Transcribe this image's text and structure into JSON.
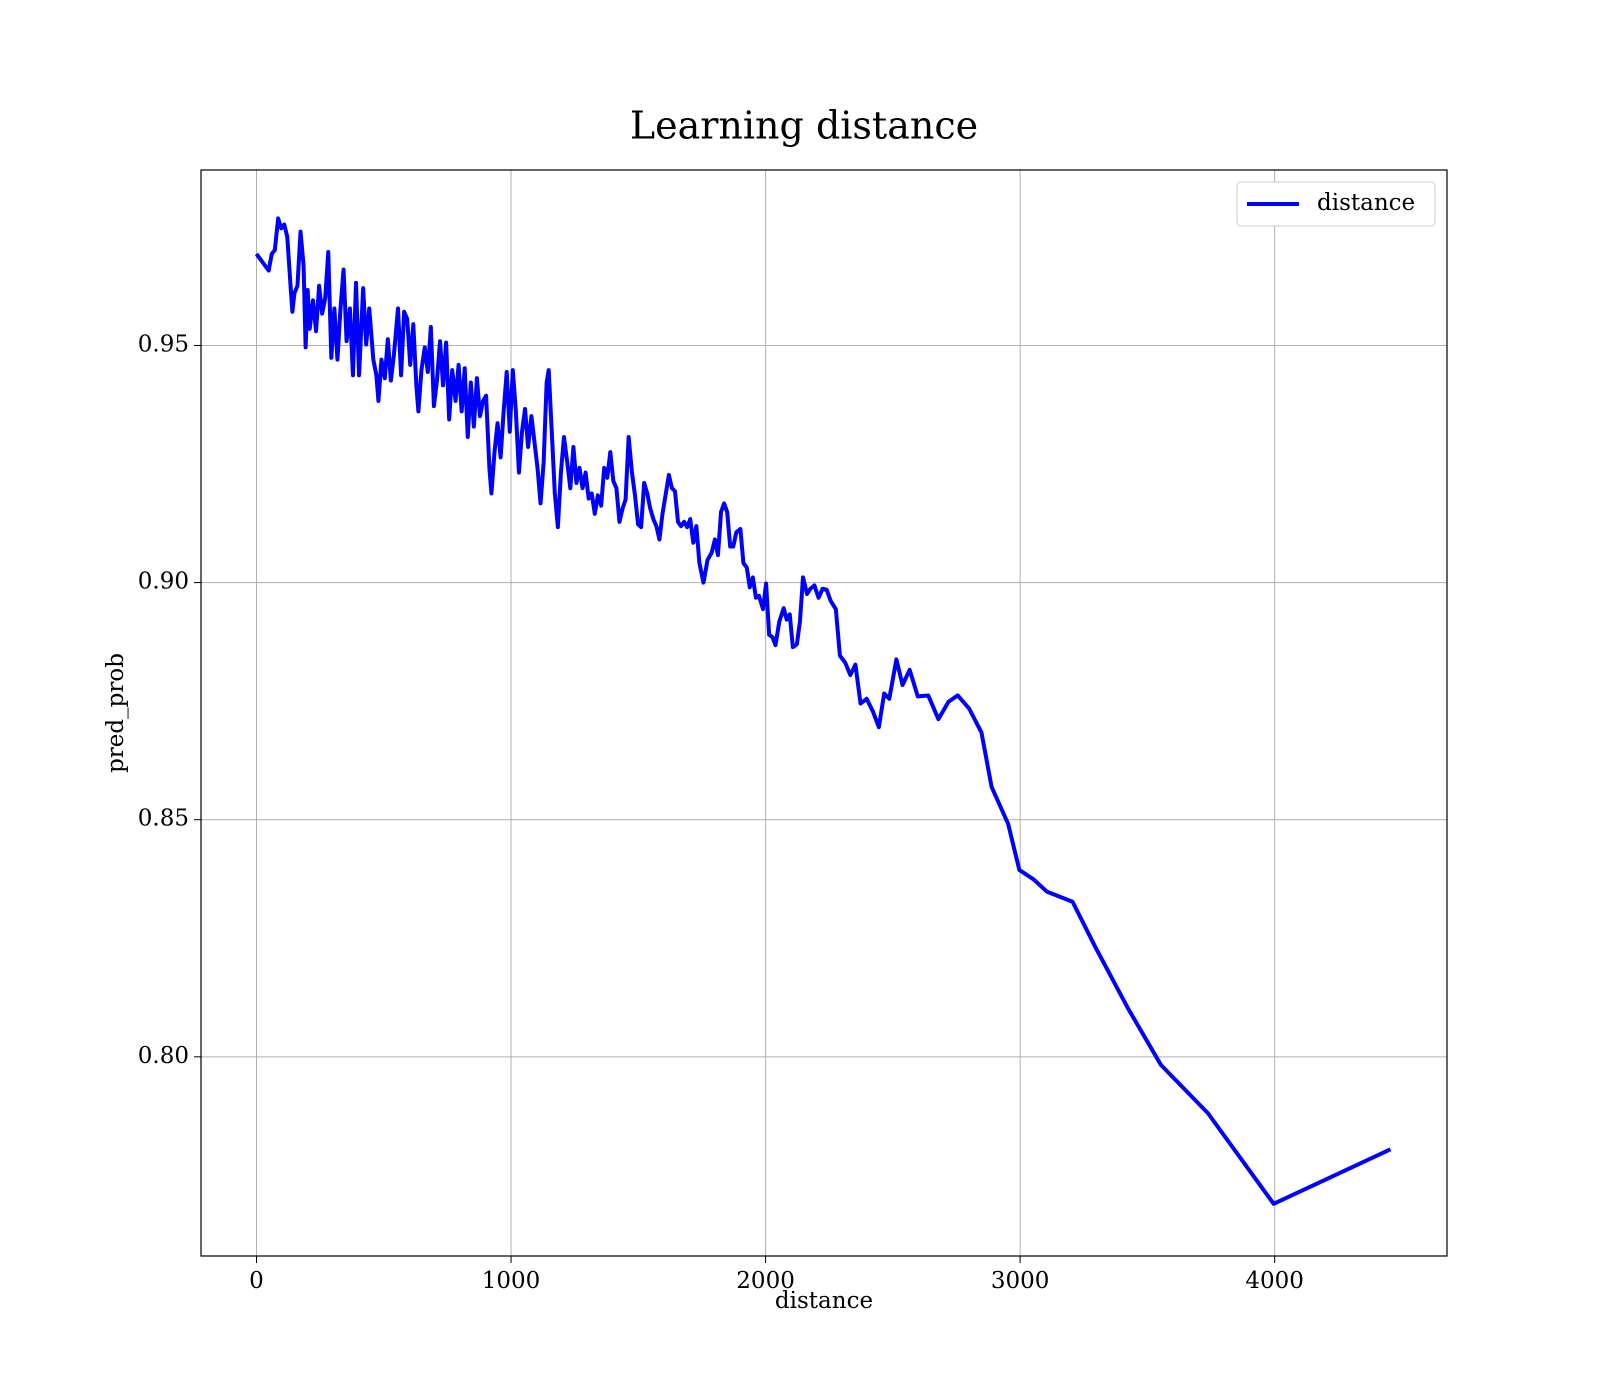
{
  "chart_data": {
    "type": "line",
    "title": "Learning distance",
    "x_label": "distance",
    "y_label": "pred_prob",
    "x": [
      0,
      48,
      60,
      72,
      85,
      97,
      109,
      121,
      133,
      141,
      149,
      161,
      173,
      185,
      193,
      201,
      209,
      222,
      234,
      246,
      258,
      270,
      282,
      294,
      306,
      318,
      330,
      342,
      354,
      367,
      379,
      391,
      403,
      419,
      431,
      443,
      459,
      471,
      479,
      491,
      504,
      516,
      528,
      540,
      556,
      568,
      580,
      592,
      604,
      616,
      628,
      636,
      648,
      661,
      673,
      685,
      697,
      709,
      721,
      733,
      745,
      757,
      769,
      782,
      794,
      806,
      818,
      830,
      842,
      854,
      866,
      878,
      890,
      902,
      915,
      923,
      935,
      947,
      959,
      971,
      983,
      995,
      1007,
      1019,
      1031,
      1043,
      1055,
      1067,
      1080,
      1092,
      1104,
      1116,
      1128,
      1140,
      1148,
      1160,
      1172,
      1184,
      1196,
      1208,
      1221,
      1233,
      1245,
      1257,
      1269,
      1281,
      1293,
      1305,
      1317,
      1329,
      1341,
      1354,
      1366,
      1378,
      1390,
      1402,
      1414,
      1426,
      1438,
      1450,
      1462,
      1475,
      1487,
      1499,
      1511,
      1523,
      1535,
      1547,
      1559,
      1571,
      1583,
      1595,
      1607,
      1620,
      1632,
      1644,
      1656,
      1668,
      1680,
      1692,
      1704,
      1716,
      1728,
      1740,
      1756,
      1772,
      1788,
      1801,
      1813,
      1825,
      1837,
      1849,
      1861,
      1873,
      1885,
      1901,
      1913,
      1926,
      1938,
      1950,
      1962,
      1974,
      1990,
      2002,
      2014,
      2027,
      2039,
      2054,
      2071,
      2083,
      2095,
      2107,
      2123,
      2135,
      2147,
      2163,
      2176,
      2192,
      2208,
      2224,
      2240,
      2256,
      2276,
      2292,
      2313,
      2333,
      2353,
      2373,
      2397,
      2421,
      2445,
      2466,
      2486,
      2514,
      2538,
      2566,
      2598,
      2639,
      2679,
      2719,
      2755,
      2800,
      2848,
      2888,
      2953,
      2997,
      3053,
      3106,
      3206,
      3295,
      3424,
      3553,
      3738,
      3996,
      4455
    ],
    "series": [
      {
        "name": "distance",
        "color": "#0000ff",
        "values": [
          0.9693,
          0.9658,
          0.9693,
          0.9701,
          0.9768,
          0.9747,
          0.9755,
          0.9729,
          0.9632,
          0.9571,
          0.961,
          0.9626,
          0.974,
          0.9669,
          0.9496,
          0.9617,
          0.9535,
          0.9595,
          0.953,
          0.9626,
          0.9567,
          0.96,
          0.9697,
          0.9474,
          0.9578,
          0.947,
          0.9578,
          0.966,
          0.9509,
          0.9578,
          0.9437,
          0.9632,
          0.9437,
          0.9621,
          0.9502,
          0.9578,
          0.947,
          0.9437,
          0.9383,
          0.947,
          0.9431,
          0.9513,
          0.9426,
          0.9481,
          0.9578,
          0.9437,
          0.9571,
          0.9556,
          0.9459,
          0.9545,
          0.9416,
          0.9361,
          0.9448,
          0.9496,
          0.9444,
          0.9539,
          0.9372,
          0.9426,
          0.9509,
          0.9416,
          0.9506,
          0.9344,
          0.9448,
          0.9383,
          0.9459,
          0.9361,
          0.9452,
          0.9307,
          0.9422,
          0.9329,
          0.9431,
          0.9351,
          0.9383,
          0.9394,
          0.9242,
          0.9188,
          0.9275,
          0.9336,
          0.9264,
          0.9361,
          0.9444,
          0.9318,
          0.9448,
          0.9361,
          0.9232,
          0.9318,
          0.9366,
          0.9286,
          0.9351,
          0.9297,
          0.9242,
          0.9167,
          0.9253,
          0.9422,
          0.9448,
          0.9318,
          0.9188,
          0.9117,
          0.9232,
          0.9307,
          0.9253,
          0.9199,
          0.9286,
          0.921,
          0.9242,
          0.9199,
          0.9232,
          0.9177,
          0.9188,
          0.9145,
          0.9184,
          0.9162,
          0.9242,
          0.9221,
          0.9275,
          0.9214,
          0.9199,
          0.9128,
          0.9156,
          0.9175,
          0.9307,
          0.9232,
          0.9184,
          0.9123,
          0.9117,
          0.921,
          0.9188,
          0.9156,
          0.9134,
          0.9119,
          0.9091,
          0.9145,
          0.9184,
          0.9227,
          0.9199,
          0.9193,
          0.9128,
          0.9119,
          0.9128,
          0.9117,
          0.9134,
          0.9084,
          0.9119,
          0.9041,
          0.9,
          0.9048,
          0.9063,
          0.9091,
          0.9058,
          0.9149,
          0.9167,
          0.9149,
          0.9076,
          0.9076,
          0.9106,
          0.9113,
          0.9041,
          0.9032,
          0.899,
          0.9011,
          0.8968,
          0.8972,
          0.8944,
          0.8998,
          0.889,
          0.8885,
          0.8868,
          0.8918,
          0.8946,
          0.8922,
          0.8933,
          0.8864,
          0.887,
          0.8918,
          0.9011,
          0.8976,
          0.8987,
          0.8994,
          0.8968,
          0.8987,
          0.8985,
          0.8961,
          0.8944,
          0.8846,
          0.8831,
          0.8805,
          0.8827,
          0.8745,
          0.8755,
          0.8729,
          0.8695,
          0.8766,
          0.8755,
          0.8838,
          0.8784,
          0.8816,
          0.876,
          0.8762,
          0.8712,
          0.8749,
          0.8762,
          0.8734,
          0.8684,
          0.8569,
          0.8491,
          0.8394,
          0.8374,
          0.8348,
          0.8327,
          0.8232,
          0.8102,
          0.7983,
          0.7881,
          0.769,
          0.7805
        ]
      }
    ],
    "xlim": [
      -218,
      4677
    ],
    "ylim": [
      0.758,
      0.987
    ],
    "xticks": [
      0,
      1000,
      2000,
      3000,
      4000
    ],
    "yticks": [
      {
        "value": 0.8,
        "label": "0.80"
      },
      0.85,
      {
        "value": 0.9,
        "label": "0.90"
      },
      0.95
    ],
    "grid": true,
    "legend": "upper right"
  }
}
